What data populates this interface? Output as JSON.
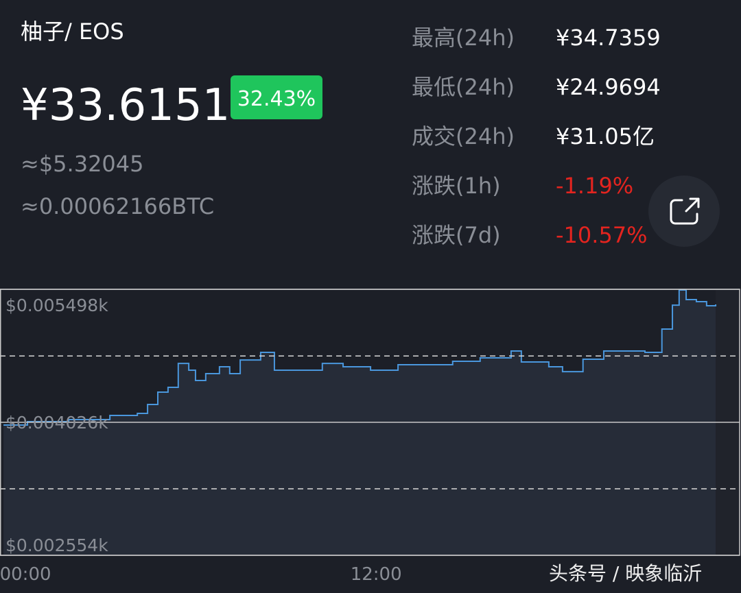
{
  "header": {
    "pair": "柚子/ EOS",
    "price": "¥33.6151",
    "change": "32.43%",
    "usd": "≈$5.32045",
    "btc": "≈0.00062166BTC"
  },
  "stats": [
    {
      "label": "最高(24h)",
      "value": "¥34.7359",
      "color": "#ffffff"
    },
    {
      "label": "最低(24h)",
      "value": "¥24.9694",
      "color": "#ffffff"
    },
    {
      "label": "成交(24h)",
      "value": "¥31.05亿",
      "color": "#ffffff"
    },
    {
      "label": "涨跌(1h)",
      "value": "-1.19%",
      "color": "#e3241f"
    },
    {
      "label": "涨跌(7d)",
      "value": "-10.57%",
      "color": "#e3241f"
    }
  ],
  "chart_data": {
    "type": "line",
    "x": [
      -0.75,
      0.07,
      1.48,
      2.89,
      3.83,
      4.18,
      4.53,
      4.88,
      5.23,
      5.59,
      5.82,
      6.17,
      6.64,
      6.99,
      7.35,
      8.05,
      8.52,
      9.23,
      10.16,
      10.87,
      11.81,
      12.75,
      13.69,
      14.62,
      15.56,
      16.62,
      16.97,
      17.91,
      18.38,
      19.08,
      19.79,
      21.2,
      21.78,
      22.14,
      22.37,
      22.61,
      22.96,
      23.31,
      23.62
    ],
    "series": [
      {
        "color": "#4a97dd",
        "values": [
          0.003996,
          0.004034,
          0.004056,
          0.004102,
          0.004125,
          0.004223,
          0.00436,
          0.004413,
          0.004678,
          0.004603,
          0.004489,
          0.004565,
          0.004641,
          0.004565,
          0.004716,
          0.0048,
          0.004603,
          0.004603,
          0.004678,
          0.004641,
          0.004603,
          0.004663,
          0.004663,
          0.004701,
          0.004739,
          0.004815,
          0.004694,
          0.004641,
          0.004587,
          0.004724,
          0.004815,
          0.0048,
          0.005058,
          0.005323,
          0.00549,
          0.005384,
          0.005361,
          0.005316,
          0.005331
        ]
      }
    ],
    "xlim": [
      -0.87,
      24.44
    ],
    "xticks": [
      {
        "value": 0,
        "label": "00:00"
      },
      {
        "value": 12,
        "label": "12:00"
      }
    ],
    "ylim": [
      0.002554,
      0.005498
    ],
    "yticks": [
      {
        "value": 0.005498,
        "label": "$0.005498k"
      },
      {
        "value": 0.004026,
        "label": "$0.004026k"
      },
      {
        "value": 0.002554,
        "label": "$0.002554k"
      }
    ],
    "minor_yticks": [
      0.00476,
      0.00329
    ],
    "grid": true
  },
  "watermark": "头条号 / 映象临沂"
}
